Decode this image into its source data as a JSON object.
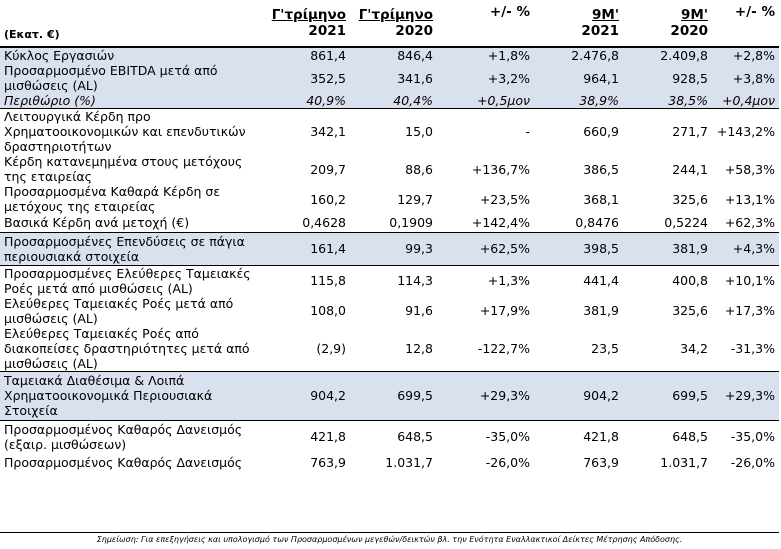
{
  "header": {
    "unit": "(Εκατ. €)",
    "q3_2021": {
      "line1": "Γ'τρίμηνο",
      "line2": "2021"
    },
    "q3_2020": {
      "line1": "Γ'τρίμηνο",
      "line2": "2020"
    },
    "q_change": "+/- %",
    "m9_2021": {
      "line1": "9Μ'",
      "line2": "2021"
    },
    "m9_2020": {
      "line1": "9Μ'",
      "line2": "2020"
    },
    "m_change": "+/- %"
  },
  "rows": [
    {
      "label": [
        "Κύκλος Εργασιών"
      ],
      "v": [
        "861,4",
        "846,4",
        "+1,8%",
        "2.476,8",
        "2.409,8",
        "+2,8%"
      ]
    },
    {
      "label": [
        "Προσαρμοσμένο EBITDA μετά από",
        "μισθώσεις (AL)"
      ],
      "v": [
        "352,5",
        "341,6",
        "+3,2%",
        "964,1",
        "928,5",
        "+3,8%"
      ]
    },
    {
      "label": [
        "Περιθώριο (%)"
      ],
      "v": [
        "40,9%",
        "40,4%",
        "+0,5μον",
        "38,9%",
        "38,5%",
        "+0,4μον"
      ]
    },
    {
      "label": [
        "Λειτουργικά Κέρδη προ",
        "Χρηματοοικονομικών και επενδυτικών",
        "δραστηριοτήτων"
      ],
      "v": [
        "342,1",
        "15,0",
        "-",
        "660,9",
        "271,7",
        "+143,2%"
      ]
    },
    {
      "label": [
        "Κέρδη κατανεμημένα στους μετόχους",
        "της εταιρείας"
      ],
      "v": [
        "209,7",
        "88,6",
        "+136,7%",
        "386,5",
        "244,1",
        "+58,3%"
      ]
    },
    {
      "label": [
        "Προσαρμοσμένα Καθαρά Κέρδη σε",
        "μετόχους της εταιρείας"
      ],
      "v": [
        "160,2",
        "129,7",
        "+23,5%",
        "368,1",
        "325,6",
        "+13,1%"
      ]
    },
    {
      "label": [
        "Βασικά Κέρδη ανά μετοχή (€)"
      ],
      "v": [
        "0,4628",
        "0,1909",
        "+142,4%",
        "0,8476",
        "0,5224",
        "+62,3%"
      ]
    },
    {
      "label": [
        "Προσαρμοσμένες Επενδύσεις σε πάγια",
        "περιουσιακά στοιχεία"
      ],
      "v": [
        "161,4",
        "99,3",
        "+62,5%",
        "398,5",
        "381,9",
        "+4,3%"
      ]
    },
    {
      "label": [
        "Προσαρμοσμένες Ελεύθερες Ταμειακές",
        "Ροές μετά από μισθώσεις (AL)"
      ],
      "v": [
        "115,8",
        "114,3",
        "+1,3%",
        "441,4",
        "400,8",
        "+10,1%"
      ]
    },
    {
      "label": [
        "Ελεύθερες Ταμειακές Ροές μετά από",
        "μισθώσεις (AL)"
      ],
      "v": [
        "108,0",
        "91,6",
        "+17,9%",
        "381,9",
        "325,6",
        "+17,3%"
      ]
    },
    {
      "label": [
        "Ελεύθερες Ταμειακές Ροές από",
        "διακοπείσες δραστηριότητες μετά από",
        "μισθώσεις (AL)"
      ],
      "v": [
        "(2,9)",
        "12,8",
        "-122,7%",
        "23,5",
        "34,2",
        "-31,3%"
      ]
    },
    {
      "label": [
        "Ταμειακά Διαθέσιμα & Λοιπά",
        "Χρηματοοικονομικά Περιουσιακά",
        "Στοιχεία"
      ],
      "v": [
        "904,2",
        "699,5",
        "+29,3%",
        "904,2",
        "699,5",
        "+29,3%"
      ]
    },
    {
      "label": [
        "Προσαρμοσμένος Καθαρός Δανεισμός",
        "(εξαιρ. μισθώσεων)"
      ],
      "v": [
        "421,8",
        "648,5",
        "-35,0%",
        "421,8",
        "648,5",
        "-35,0%"
      ]
    },
    {
      "label": [
        "Προσαρμοσμένος Καθαρός Δανεισμός"
      ],
      "v": [
        "763,9",
        "1.031,7",
        "-26,0%",
        "763,9",
        "1.031,7",
        "-26,0%"
      ]
    }
  ],
  "footnote": "Σημείωση: Για επεξηγήσεις και υπολογισμό των Προσαρμοσμένων μεγεθών/δεικτών βλ. την Ενότητα Εναλλακτικοί Δείκτες Μέτρησης Απόδοσης."
}
